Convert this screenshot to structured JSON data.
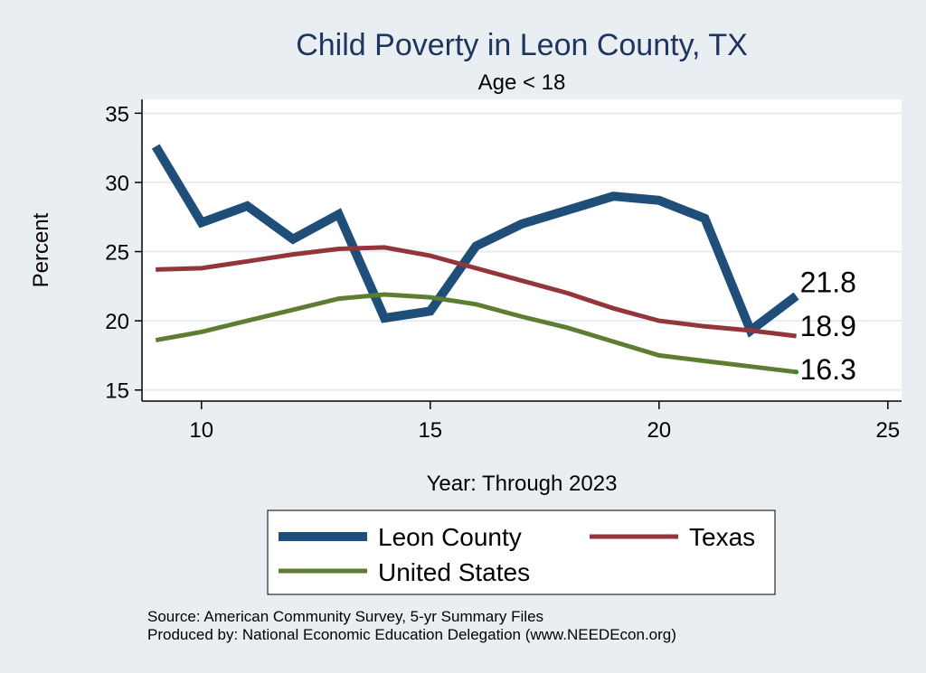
{
  "chart_data": {
    "type": "line",
    "title": "Child Poverty in Leon County, TX",
    "subtitle": "Age < 18",
    "xlabel": "Year: Through 2023",
    "ylabel": "Percent",
    "xlim": [
      8.7,
      25.3
    ],
    "ylim": [
      14.2,
      36
    ],
    "xticks": [
      10,
      15,
      20,
      25
    ],
    "yticks": [
      15,
      20,
      25,
      30,
      35
    ],
    "grid": true,
    "legend_position": "bottom",
    "x": [
      9,
      10,
      11,
      12,
      13,
      14,
      15,
      16,
      17,
      18,
      19,
      20,
      21,
      22,
      23
    ],
    "series": [
      {
        "name": "Leon County",
        "color": "#1f4e79",
        "values": [
          32.6,
          27.1,
          28.3,
          25.9,
          27.7,
          20.2,
          20.7,
          25.4,
          27.0,
          28.0,
          29.0,
          28.7,
          27.4,
          19.3,
          21.8
        ],
        "end_label": "21.8"
      },
      {
        "name": "Texas",
        "color": "#93363b",
        "values": [
          23.7,
          23.8,
          24.3,
          24.8,
          25.2,
          25.3,
          24.7,
          23.8,
          22.9,
          22.0,
          20.9,
          20.0,
          19.6,
          19.3,
          18.9
        ],
        "end_label": "18.9"
      },
      {
        "name": "United States",
        "color": "#5c7d32",
        "values": [
          18.6,
          19.2,
          20.0,
          20.8,
          21.6,
          21.9,
          21.7,
          21.2,
          20.3,
          19.5,
          18.5,
          17.5,
          17.1,
          16.7,
          16.3
        ],
        "end_label": "16.3"
      }
    ]
  },
  "notes": {
    "source": "Source: American Community Survey, 5-yr Summary Files",
    "produced_by": "Produced by: National Economic Education Delegation (www.NEEDEcon.org)"
  }
}
